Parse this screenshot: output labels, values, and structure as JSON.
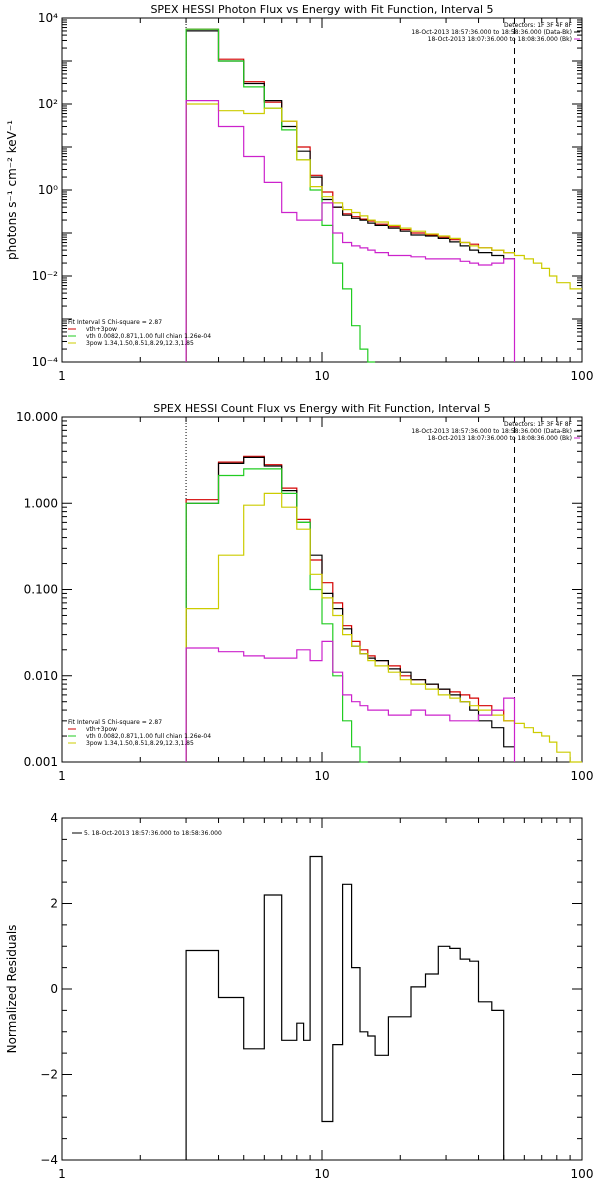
{
  "colors": {
    "total": "#000000",
    "vth_3pow": "#d40000",
    "vth": "#22cc22",
    "3pow": "#cccc00",
    "background": "#cc22cc",
    "dashed": "#000000",
    "dotted": "#000000"
  },
  "chart_data": [
    {
      "type": "line",
      "title": "SPEX HESSI Photon Flux vs Energy with Fit Function, Interval 5",
      "ylabel": "photons s⁻¹ cm⁻² keV⁻¹",
      "xlabel": "",
      "xscale": "log",
      "yscale": "log",
      "xlim": [
        1,
        100
      ],
      "ylim": [
        0.0001,
        10000
      ],
      "xticks": [
        1,
        10,
        100
      ],
      "xtick_labels": [
        "1",
        "10",
        "100"
      ],
      "yticks": [
        0.0001,
        0.01,
        1,
        100,
        10000
      ],
      "ytick_labels": [
        "10⁻⁴",
        "10⁻²",
        "10⁰",
        "10²",
        "10⁴"
      ],
      "legend_top": {
        "title": "Detectors: 1F 3F 4F 8F",
        "entries": [
          {
            "label": "18-Oct-2013 18:57:36.000 to 18:58:36.000 (Data-Bk)",
            "color": "#000000"
          },
          {
            "label": "18-Oct-2013 18:07:36.000 to 18:08:36.000 (Bk)",
            "color": "#cc22cc"
          }
        ]
      },
      "legend_bottom": {
        "title": "Fit Interval 5   Chi-square = 2.87",
        "entries": [
          {
            "label": "vth+3pow",
            "color": "#d40000"
          },
          {
            "label": "vth 0.0082,0.871,1.00  full chian 1.26e-04",
            "color": "#22cc22"
          },
          {
            "label": "3pow 1.34,1.50,8.51,8.29,12.3,1.85",
            "color": "#cccc00"
          }
        ]
      },
      "vlines": [
        {
          "x": 3.0,
          "style": "dotted"
        },
        {
          "x": 55,
          "style": "dashed"
        }
      ],
      "x_edges": [
        3.0,
        4.0,
        5.0,
        6.0,
        7.0,
        8.0,
        9.0,
        10.0,
        11.0,
        12.0,
        13.0,
        14.0,
        15.0,
        16.0,
        18.0,
        20.0,
        22.0,
        25.0,
        28.0,
        31.0,
        34.0,
        37.0,
        40.0,
        45.0,
        50.0,
        55.0,
        60.0,
        65.0,
        70.0,
        75.0,
        80.0,
        90.0,
        100.0
      ],
      "series": [
        {
          "key": "vth_3pow",
          "values": [
            5500,
            1100,
            330,
            110,
            40,
            10,
            2.2,
            0.9,
            0.4,
            0.28,
            0.24,
            0.21,
            0.19,
            0.16,
            0.14,
            0.12,
            0.1,
            0.09,
            0.08,
            0.07,
            0.06,
            0.055,
            0.045,
            0.04,
            0.035
          ],
          "x_to": 55
        },
        {
          "key": "total",
          "values": [
            5000,
            1000,
            300,
            120,
            30,
            8,
            2.0,
            0.6,
            0.4,
            0.26,
            0.22,
            0.2,
            0.17,
            0.15,
            0.13,
            0.11,
            0.09,
            0.085,
            0.075,
            0.062,
            0.05,
            0.04,
            0.035,
            0.03,
            0.025
          ],
          "x_to": 55
        },
        {
          "key": "vth",
          "values": [
            5500,
            1000,
            250,
            80,
            25,
            5,
            1.0,
            0.15,
            0.02,
            0.005,
            0.0007,
            0.0002,
            5e-05
          ],
          "x_to": 16.0
        },
        {
          "key": "3pow",
          "values": [
            100,
            70,
            60,
            80,
            40,
            5,
            1.2,
            0.7,
            0.5,
            0.35,
            0.3,
            0.25,
            0.2,
            0.18,
            0.15,
            0.13,
            0.11,
            0.095,
            0.085,
            0.075,
            0.06,
            0.05,
            0.045,
            0.04,
            0.035,
            0.03,
            0.025,
            0.02,
            0.015,
            0.01,
            0.007,
            0.005
          ],
          "x_to": 100
        },
        {
          "key": "background",
          "values": [
            120,
            30,
            6,
            1.5,
            0.3,
            0.2,
            0.2,
            0.5,
            0.1,
            0.06,
            0.05,
            0.045,
            0.04,
            0.035,
            0.03,
            0.03,
            0.028,
            0.025,
            0.025,
            0.025,
            0.022,
            0.02,
            0.018,
            0.02,
            0.025
          ],
          "x_to": 55,
          "drop_to_floor": true
        }
      ]
    },
    {
      "type": "line",
      "title": "SPEX HESSI Count Flux vs Energy with Fit Function, Interval 5",
      "ylabel": "",
      "xlabel": "",
      "xscale": "log",
      "yscale": "log",
      "xlim": [
        1,
        100
      ],
      "ylim": [
        0.001,
        10
      ],
      "xticks": [
        1,
        10,
        100
      ],
      "xtick_labels": [
        "1",
        "10",
        "100"
      ],
      "yticks": [
        0.001,
        0.01,
        0.1,
        1,
        10
      ],
      "ytick_labels": [
        "0.001",
        "0.010",
        "0.100",
        "1.000",
        "10.000"
      ],
      "legend_top": {
        "title": "Detectors: 1F 3F 4F 8F",
        "entries": [
          {
            "label": "18-Oct-2013 18:57:36.000 to 18:58:36.000 (Data-Bk)",
            "color": "#000000"
          },
          {
            "label": "18-Oct-2013 18:07:36.000 to 18:08:36.000 (Bk)",
            "color": "#cc22cc"
          }
        ]
      },
      "legend_bottom": {
        "title": "Fit Interval 5   Chi-square = 2.87",
        "entries": [
          {
            "label": "vth+3pow",
            "color": "#d40000"
          },
          {
            "label": "vth 0.0082,0.871,1.00  full chian 1.26e-04",
            "color": "#22cc22"
          },
          {
            "label": "3pow 1.34,1.50,8.51,8.29,12.3,1.85",
            "color": "#cccc00"
          }
        ]
      },
      "vlines": [
        {
          "x": 3.0,
          "style": "dotted"
        },
        {
          "x": 55,
          "style": "dashed"
        }
      ],
      "x_edges": [
        3.0,
        4.0,
        5.0,
        6.0,
        7.0,
        8.0,
        9.0,
        10.0,
        11.0,
        12.0,
        13.0,
        14.0,
        15.0,
        16.0,
        18.0,
        20.0,
        22.0,
        25.0,
        28.0,
        31.0,
        34.0,
        37.0,
        40.0,
        45.0,
        50.0,
        55.0,
        60.0,
        65.0,
        70.0,
        75.0,
        80.0,
        90.0,
        100.0
      ],
      "series": [
        {
          "key": "vth_3pow",
          "values": [
            1.1,
            3.0,
            3.5,
            2.8,
            1.5,
            0.65,
            0.22,
            0.12,
            0.07,
            0.038,
            0.025,
            0.02,
            0.017,
            0.015,
            0.013,
            0.01,
            0.009,
            0.008,
            0.007,
            0.0065,
            0.006,
            0.0055,
            0.0045,
            0.004,
            0.003
          ],
          "x_to": 55
        },
        {
          "key": "total",
          "values": [
            1.0,
            2.9,
            3.4,
            2.7,
            1.4,
            0.6,
            0.25,
            0.09,
            0.06,
            0.035,
            0.022,
            0.018,
            0.016,
            0.015,
            0.012,
            0.011,
            0.009,
            0.008,
            0.007,
            0.006,
            0.005,
            0.004,
            0.003,
            0.0025,
            0.0015
          ],
          "x_to": 55
        },
        {
          "key": "vth",
          "values": [
            1.0,
            2.1,
            2.5,
            2.5,
            1.3,
            0.6,
            0.1,
            0.04,
            0.01,
            0.003,
            0.0015,
            0.001
          ],
          "x_to": 15.0
        },
        {
          "key": "3pow",
          "values": [
            0.06,
            0.25,
            0.95,
            1.3,
            0.9,
            0.5,
            0.15,
            0.08,
            0.05,
            0.03,
            0.022,
            0.018,
            0.015,
            0.013,
            0.011,
            0.009,
            0.008,
            0.007,
            0.006,
            0.0055,
            0.005,
            0.0045,
            0.004,
            0.0035,
            0.003,
            0.0028,
            0.0025,
            0.0022,
            0.002,
            0.0017,
            0.0013,
            0.001
          ],
          "x_to": 100
        },
        {
          "key": "background",
          "values": [
            0.021,
            0.019,
            0.017,
            0.016,
            0.016,
            0.02,
            0.015,
            0.025,
            0.011,
            0.006,
            0.005,
            0.0045,
            0.004,
            0.004,
            0.0035,
            0.0035,
            0.004,
            0.0035,
            0.0035,
            0.003,
            0.003,
            0.003,
            0.0035,
            0.004,
            0.0055
          ],
          "x_to": 55,
          "drop_to_floor": true
        }
      ]
    },
    {
      "type": "line",
      "title": "",
      "ylabel": "Normalized Residuals",
      "xlabel": "",
      "xscale": "log",
      "yscale": "linear",
      "xlim": [
        1,
        100
      ],
      "ylim": [
        -4,
        4
      ],
      "xticks": [
        1,
        10,
        100
      ],
      "xtick_labels": [
        "1",
        "10",
        "100"
      ],
      "yticks": [
        -4,
        -2,
        0,
        2,
        4
      ],
      "ytick_labels": [
        "−4",
        "−2",
        "0",
        "2",
        "4"
      ],
      "legend_top": {
        "title": "",
        "entries": [
          {
            "label": "5. 18-Oct-2013 18:57:36.000 to 18:58:36.000",
            "color": "#000000"
          }
        ]
      },
      "x_edges": [
        3.0,
        3.5,
        4.0,
        5.0,
        6.0,
        7.0,
        8.0,
        8.5,
        9.0,
        10.0,
        11.0,
        12.0,
        13.0,
        14.0,
        15.0,
        16.0,
        18.0,
        20.0,
        22.0,
        25.0,
        28.0,
        31.0,
        34.0,
        37.0,
        40.0,
        45.0,
        50.0,
        55.0
      ],
      "series": [
        {
          "key": "total",
          "values": [
            0.9,
            0.9,
            -0.2,
            -1.4,
            2.2,
            -1.2,
            -0.8,
            -1.2,
            3.1,
            -3.1,
            -1.3,
            2.45,
            0.5,
            -1.0,
            -1.1,
            -1.55,
            -0.65,
            -0.65,
            0.05,
            0.35,
            1.0,
            0.95,
            0.7,
            0.65,
            -0.3,
            -0.5
          ],
          "x_to": 55,
          "drop_to_floor": true
        }
      ]
    }
  ]
}
